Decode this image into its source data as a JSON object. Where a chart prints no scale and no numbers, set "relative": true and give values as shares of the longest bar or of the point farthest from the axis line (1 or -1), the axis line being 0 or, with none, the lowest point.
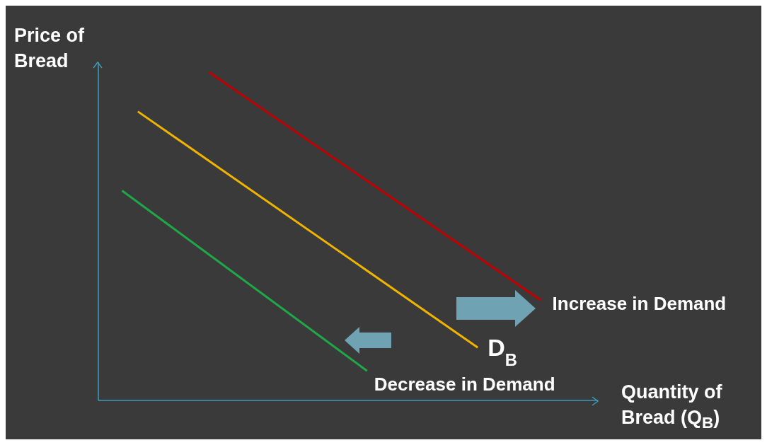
{
  "chart_data": {
    "type": "line",
    "relative": true,
    "xlabel": "Quantity of Bread (Q$_{B}$)",
    "ylabel": "Price of Bread",
    "marker": "none",
    "line_style": "solid",
    "categories": [
      null,
      null,
      null,
      null,
      null,
      null,
      null,
      null,
      null,
      null,
      null,
      null,
      null,
      null,
      null,
      null,
      null,
      null,
      null,
      null,
      null,
      null,
      null,
      null,
      null,
      null,
      null,
      null,
      null,
      null,
      null,
      null,
      null,
      null,
      null,
      null,
      null,
      null,
      null,
      null,
      null,
      null,
      null,
      null,
      null,
      null,
      null,
      null,
      null,
      null,
      null,
      null,
      null,
      null,
      null,
      null,
      null,
      null,
      null,
      null,
      null,
      null,
      null,
      null
    ],
    "series": [
      {
        "name": "Increase in Demand",
        "color": "#c00000",
        "values": [
          null,
          null,
          null,
          null,
          null,
          null,
          null,
          null,
          null,
          null,
          null,
          null,
          null,
          null,
          1.0,
          null,
          null,
          null,
          null,
          null,
          null,
          null,
          null,
          null,
          null,
          null,
          null,
          null,
          null,
          null,
          null,
          null,
          null,
          null,
          null,
          null,
          null,
          null,
          null,
          null,
          null,
          null,
          null,
          null,
          null,
          null,
          null,
          null,
          null,
          null,
          null,
          null,
          null,
          null,
          null,
          null,
          0.305,
          null,
          null,
          null,
          null,
          null,
          null,
          null
        ]
      },
      {
        "name": "D$_{B}$",
        "color": "#f0b400",
        "values": [
          null,
          null,
          null,
          null,
          null,
          0.88,
          null,
          null,
          null,
          null,
          null,
          null,
          null,
          null,
          null,
          null,
          null,
          null,
          null,
          null,
          null,
          null,
          null,
          null,
          null,
          null,
          null,
          null,
          null,
          null,
          null,
          null,
          null,
          null,
          null,
          null,
          null,
          null,
          null,
          null,
          null,
          null,
          null,
          null,
          null,
          null,
          null,
          null,
          0.161,
          null,
          null,
          null,
          null,
          null,
          null,
          null,
          null,
          null,
          null,
          null,
          null,
          null,
          null,
          null
        ]
      },
      {
        "name": "Decrease in Demand",
        "color": "#1fa848",
        "values": [
          null,
          null,
          null,
          0.639,
          null,
          null,
          null,
          null,
          null,
          null,
          null,
          null,
          null,
          null,
          null,
          null,
          null,
          null,
          null,
          null,
          null,
          null,
          null,
          null,
          null,
          null,
          null,
          null,
          null,
          null,
          null,
          null,
          null,
          null,
          0.09,
          null,
          null,
          null,
          null,
          null,
          null,
          null,
          null,
          null,
          null,
          null,
          null,
          null,
          null,
          null,
          null,
          null,
          null,
          null,
          null,
          null,
          null,
          null,
          null,
          null,
          null,
          null,
          null,
          null
        ]
      }
    ]
  }
}
